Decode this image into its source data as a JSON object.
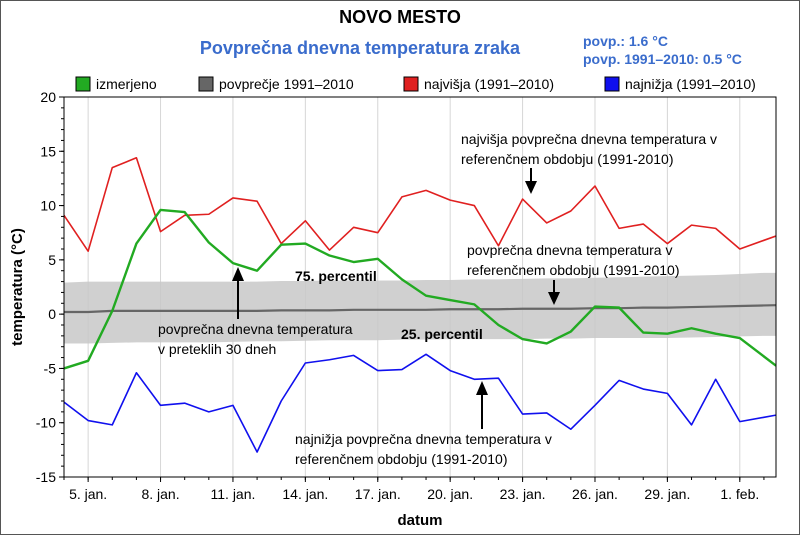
{
  "chart_data": {
    "type": "line",
    "title": "NOVO MESTO",
    "subtitle": "Povprečna dnevna temperatura zraka",
    "stats": [
      "povp.: 1.6 °C",
      "povp. 1991–2010: 0.5 °C"
    ],
    "xlabel": "datum",
    "ylabel": "temperatura (°C)",
    "ylim": [
      -15,
      20
    ],
    "y_ticks": [
      -15,
      -10,
      -5,
      0,
      5,
      10,
      15,
      20
    ],
    "x_ticks": [
      {
        "day": 5,
        "label": "5. jan."
      },
      {
        "day": 8,
        "label": "8. jan."
      },
      {
        "day": 11,
        "label": "11. jan."
      },
      {
        "day": 14,
        "label": "14. jan."
      },
      {
        "day": 17,
        "label": "17. jan."
      },
      {
        "day": 20,
        "label": "20. jan."
      },
      {
        "day": 23,
        "label": "23. jan."
      },
      {
        "day": 26,
        "label": "26. jan."
      },
      {
        "day": 29,
        "label": "29. jan."
      },
      {
        "day": 32,
        "label": "1. feb."
      }
    ],
    "x": [
      4,
      5,
      6,
      7,
      8,
      9,
      10,
      11,
      12,
      13,
      14,
      15,
      16,
      17,
      18,
      19,
      20,
      21,
      22,
      23,
      24,
      25,
      26,
      27,
      28,
      29,
      30,
      31,
      32,
      33
    ],
    "series": [
      {
        "name": "izmerjeno",
        "color": "#22aa22",
        "values": [
          -5.0,
          -4.3,
          0.3,
          6.5,
          9.6,
          9.4,
          6.6,
          4.7,
          4.0,
          6.4,
          6.5,
          5.4,
          4.8,
          5.1,
          3.2,
          1.7,
          1.3,
          0.9,
          -1.0,
          -2.3,
          -2.7,
          -1.6,
          0.7,
          0.6,
          -1.7,
          -1.8,
          -1.3,
          -1.8,
          -2.2,
          -3.9
        ]
      },
      {
        "name": "povprečje 1991–2010",
        "color": "#666666",
        "values": [
          0.2,
          0.2,
          0.3,
          0.3,
          0.3,
          0.3,
          0.3,
          0.3,
          0.3,
          0.35,
          0.35,
          0.35,
          0.4,
          0.4,
          0.4,
          0.4,
          0.45,
          0.45,
          0.45,
          0.5,
          0.5,
          0.5,
          0.55,
          0.55,
          0.6,
          0.6,
          0.65,
          0.7,
          0.75,
          0.8
        ]
      },
      {
        "name": "najvišja (1991–2010)",
        "color": "#e02020",
        "values": [
          9.1,
          5.8,
          13.5,
          14.4,
          7.6,
          9.1,
          9.2,
          10.7,
          10.4,
          6.5,
          8.6,
          5.9,
          8.0,
          7.5,
          10.8,
          11.4,
          10.5,
          10.0,
          6.3,
          10.6,
          8.4,
          9.5,
          11.8,
          7.9,
          8.3,
          6.5,
          8.2,
          7.9,
          6.0,
          6.8
        ]
      },
      {
        "name": "najnižja (1991–2010)",
        "color": "#1010ee",
        "values": [
          -8.1,
          -9.8,
          -10.2,
          -5.4,
          -8.4,
          -8.2,
          -9.0,
          -8.4,
          -12.7,
          -8.0,
          -4.5,
          -4.2,
          -3.8,
          -5.2,
          -5.1,
          -3.7,
          -5.2,
          -6.0,
          -5.9,
          -9.2,
          -9.1,
          -10.6,
          -8.4,
          -6.1,
          -6.9,
          -7.3,
          -10.2,
          -6.0,
          -9.9,
          -9.5
        ]
      }
    ],
    "percentile_band": {
      "name": "percentile 25–75",
      "color": "#c8c8c8",
      "upper": [
        2.9,
        3.0,
        3.0,
        3.0,
        3.0,
        3.0,
        3.0,
        3.0,
        3.0,
        3.05,
        3.05,
        3.1,
        3.1,
        3.1,
        3.1,
        3.15,
        3.15,
        3.2,
        3.2,
        3.25,
        3.3,
        3.3,
        3.35,
        3.4,
        3.45,
        3.5,
        3.55,
        3.6,
        3.7,
        3.8
      ],
      "lower": [
        -2.7,
        -2.7,
        -2.65,
        -2.6,
        -2.6,
        -2.6,
        -2.6,
        -2.55,
        -2.5,
        -2.5,
        -2.45,
        -2.4,
        -2.4,
        -2.4,
        -2.35,
        -2.35,
        -2.3,
        -2.3,
        -2.3,
        -2.3,
        -2.25,
        -2.25,
        -2.2,
        -2.2,
        -2.2,
        -2.2,
        -2.15,
        -2.1,
        -2.05,
        -2.0
      ]
    },
    "legend": [
      {
        "label": "izmerjeno",
        "color": "#22aa22"
      },
      {
        "label": "povprečje 1991–2010",
        "color": "#666666"
      },
      {
        "label": "najvišja (1991–2010)",
        "color": "#e02020"
      },
      {
        "label": "najnižja (1991–2010)",
        "color": "#1010ee"
      }
    ],
    "legend_placement": "top",
    "grid": "vertical",
    "annotations": {
      "max_note": [
        "najvišja povprečna dnevna temperatura v",
        "referenčnem obdobju (1991-2010)"
      ],
      "avg_ref_note": [
        "povprečna dnevna temperatura v",
        "referenčnem obdobju (1991-2010)"
      ],
      "last30_note": [
        "povprečna dnevna temperatura",
        "v preteklih 30 dneh"
      ],
      "min_note": [
        "najnižja povprečna dnevna temperatura v",
        "referenčnem obdobju (1991-2010)"
      ],
      "p75": "75. percentil",
      "p25": "25. percentil"
    }
  }
}
